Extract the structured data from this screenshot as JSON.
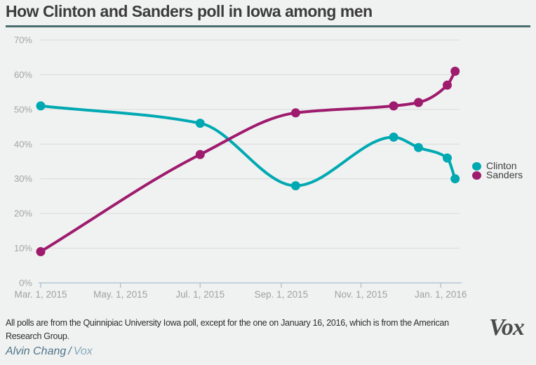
{
  "title": "How Clinton and Sanders poll in Iowa among men",
  "footnote": "All polls are from the Quinnipiac University Iowa poll, except for the one on January 16, 2016, which is from the American Research Group.",
  "credit": {
    "author": "Alvin Chang",
    "separator": "/",
    "source": "Vox"
  },
  "brand_logo": "Vox",
  "colors": {
    "background": "#f0f2f1",
    "title_text": "#3c3c3c",
    "divider": "#4a6c6e",
    "gridline": "#d9dbda",
    "y_tick_label": "#a1a5a3",
    "x_tick_label": "#9da19f",
    "axis_line": "#b6c4d2",
    "clinton": "#00a9b2",
    "sanders": "#9e1b6e",
    "legend_text": "#3e3e3e",
    "footnote_text": "#2d2d2d",
    "credit_author": "#50758a",
    "credit_source": "#84a7b8",
    "logo_text": "#4b4b4b"
  },
  "chart_data": {
    "type": "line",
    "title": "How Clinton and Sanders poll in Iowa among men",
    "curve": "monotone",
    "legend_position": "right",
    "x_axis": {
      "tick_labels": [
        "Mar. 1, 2015",
        "May. 1, 2015",
        "Jul. 1, 2015",
        "Sep. 1, 2015",
        "Nov. 1, 2015",
        "Jan. 1, 2016"
      ],
      "tick_day_offsets": [
        0,
        61,
        122,
        184,
        245,
        306
      ],
      "range_day_offsets": [
        0,
        322
      ],
      "start_label": "Mar. 1, 2015"
    },
    "y_axis": {
      "tick_labels": [
        "0%",
        "10%",
        "20%",
        "30%",
        "40%",
        "50%",
        "60%",
        "70%"
      ],
      "tick_values": [
        0,
        10,
        20,
        30,
        40,
        50,
        60,
        70
      ],
      "ylim": [
        0,
        70
      ],
      "unit": "percent",
      "grid": true
    },
    "x_day_offsets": [
      0,
      122,
      195,
      270,
      289,
      311,
      317
    ],
    "series": [
      {
        "name": "Clinton",
        "color": "#00a9b2",
        "values": [
          51,
          46,
          28,
          42,
          39,
          36,
          30
        ]
      },
      {
        "name": "Sanders",
        "color": "#9e1b6e",
        "values": [
          9,
          37,
          49,
          51,
          52,
          57,
          61
        ]
      }
    ]
  }
}
